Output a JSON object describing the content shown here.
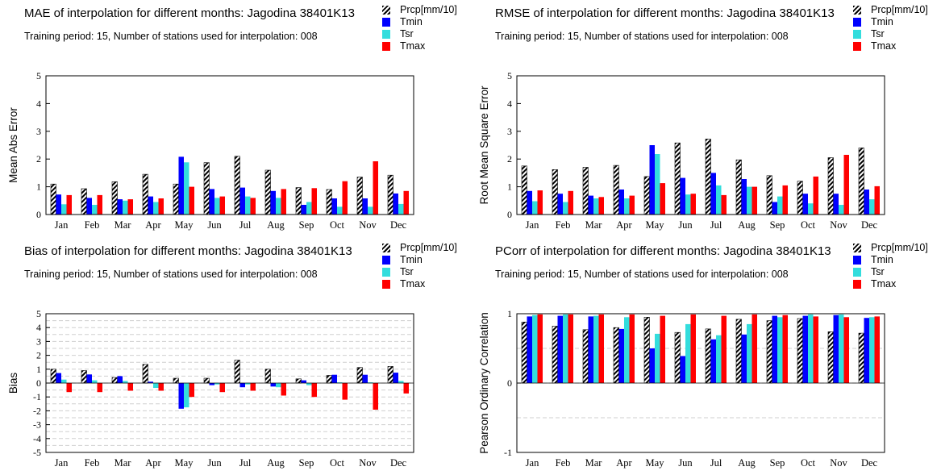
{
  "legend": [
    {
      "name": "Prcp[mm/10]",
      "color": "#000000",
      "pattern": "hatch"
    },
    {
      "name": "Tmin",
      "color": "#0000ff"
    },
    {
      "name": "Tsr",
      "color": "#33dddd"
    },
    {
      "name": "Tmax",
      "color": "#ff0000"
    }
  ],
  "chart_data": [
    {
      "type": "bar",
      "title": "MAE of interpolation for different months: Jagodina  38401K13",
      "subtitle": "Training period: 15, Number of stations used for interpolation: 008",
      "ylabel": "Mean Abs Error",
      "ylim": [
        0,
        5
      ],
      "yticks": [
        0,
        1,
        2,
        3,
        4,
        5
      ],
      "grid": false,
      "categories": [
        "Jan",
        "Feb",
        "Mar",
        "Apr",
        "May",
        "Jun",
        "Jul",
        "Aug",
        "Sep",
        "Oct",
        "Nov",
        "Dec"
      ],
      "series": [
        {
          "name": "Prcp[mm/10]",
          "values": [
            1.1,
            0.93,
            1.18,
            1.45,
            1.1,
            1.87,
            2.1,
            1.6,
            0.97,
            0.9,
            1.35,
            1.42
          ]
        },
        {
          "name": "Tmin",
          "values": [
            0.72,
            0.6,
            0.55,
            0.65,
            2.08,
            0.92,
            0.97,
            0.85,
            0.35,
            0.58,
            0.58,
            0.76
          ]
        },
        {
          "name": "Tsr",
          "values": [
            0.37,
            0.35,
            0.5,
            0.45,
            1.88,
            0.6,
            0.65,
            0.6,
            0.45,
            0.28,
            0.28,
            0.38
          ]
        },
        {
          "name": "Tmax",
          "values": [
            0.7,
            0.7,
            0.55,
            0.58,
            1.0,
            0.65,
            0.6,
            0.92,
            0.95,
            1.2,
            1.92,
            0.85
          ]
        }
      ]
    },
    {
      "type": "bar",
      "title": "RMSE of interpolation for different months: Jagodina  38401K13",
      "subtitle": "Training period: 15, Number of stations used for interpolation: 008",
      "ylabel": "Root Mean Square Error",
      "ylim": [
        0,
        5
      ],
      "yticks": [
        0,
        1,
        2,
        3,
        4,
        5
      ],
      "grid": false,
      "categories": [
        "Jan",
        "Feb",
        "Mar",
        "Apr",
        "May",
        "Jun",
        "Jul",
        "Aug",
        "Sep",
        "Oct",
        "Nov",
        "Dec"
      ],
      "series": [
        {
          "name": "Prcp[mm/10]",
          "values": [
            1.75,
            1.62,
            1.7,
            1.77,
            1.37,
            2.58,
            2.72,
            1.97,
            1.4,
            1.2,
            2.05,
            2.4
          ]
        },
        {
          "name": "Tmin",
          "values": [
            0.85,
            0.75,
            0.68,
            0.9,
            2.5,
            1.32,
            1.5,
            1.28,
            0.45,
            0.75,
            0.75,
            0.9
          ]
        },
        {
          "name": "Tsr",
          "values": [
            0.48,
            0.45,
            0.58,
            0.58,
            2.18,
            0.72,
            1.05,
            1.0,
            0.65,
            0.4,
            0.35,
            0.55
          ]
        },
        {
          "name": "Tmax",
          "values": [
            0.87,
            0.85,
            0.63,
            0.68,
            1.13,
            0.75,
            0.7,
            1.0,
            1.05,
            1.37,
            2.15,
            1.02
          ]
        }
      ]
    },
    {
      "type": "bar",
      "title": "Bias of interpolation for different months: Jagodina  38401K13",
      "subtitle": "Training period: 15, Number of stations used for interpolation: 008",
      "ylabel": "Bias",
      "ylim": [
        -5,
        5
      ],
      "yticks": [
        -5,
        -4,
        -3,
        -2,
        -1,
        0,
        1,
        2,
        3,
        4,
        5
      ],
      "grid": true,
      "categories": [
        "Jan",
        "Feb",
        "Mar",
        "Apr",
        "May",
        "Jun",
        "Jul",
        "Aug",
        "Sep",
        "Oct",
        "Nov",
        "Dec"
      ],
      "series": [
        {
          "name": "Prcp[mm/10]",
          "values": [
            1.0,
            0.9,
            0.4,
            1.35,
            0.35,
            0.35,
            1.65,
            1.0,
            0.3,
            0.55,
            1.12,
            1.2
          ]
        },
        {
          "name": "Tmin",
          "values": [
            0.72,
            0.62,
            0.5,
            0.1,
            -1.85,
            -0.15,
            -0.3,
            -0.25,
            0.2,
            0.6,
            0.6,
            0.75
          ]
        },
        {
          "name": "Tsr",
          "values": [
            0.25,
            0.2,
            0.15,
            -0.35,
            -1.75,
            -0.1,
            -0.1,
            -0.3,
            -0.15,
            0.05,
            0.05,
            0.15
          ]
        },
        {
          "name": "Tmax",
          "values": [
            -0.65,
            -0.65,
            -0.55,
            -0.55,
            -1.0,
            -0.65,
            -0.55,
            -0.9,
            -1.0,
            -1.2,
            -1.92,
            -0.75
          ]
        }
      ]
    },
    {
      "type": "bar",
      "title": "PCorr of interpolation for different months: Jagodina  38401K13",
      "subtitle": "Training period: 15, Number of stations used for interpolation: 008",
      "ylabel": "Pearson Ordinary Correlation",
      "ylim": [
        -1,
        1
      ],
      "yticks": [
        -1,
        0,
        1
      ],
      "grid": true,
      "categories": [
        "Jan",
        "Feb",
        "Mar",
        "Apr",
        "May",
        "Jun",
        "Jul",
        "Aug",
        "Sep",
        "Oct",
        "Nov",
        "Dec"
      ],
      "series": [
        {
          "name": "Prcp[mm/10]",
          "values": [
            0.88,
            0.82,
            0.77,
            0.8,
            0.95,
            0.73,
            0.78,
            0.92,
            0.9,
            0.93,
            0.74,
            0.72
          ]
        },
        {
          "name": "Tmin",
          "values": [
            0.96,
            0.97,
            0.96,
            0.78,
            0.5,
            0.39,
            0.63,
            0.7,
            0.97,
            0.97,
            0.98,
            0.94
          ]
        },
        {
          "name": "Tsr",
          "values": [
            0.98,
            0.99,
            0.97,
            0.95,
            0.71,
            0.85,
            0.69,
            0.85,
            0.95,
            0.99,
            0.99,
            0.95
          ]
        },
        {
          "name": "Tmax",
          "values": [
            0.99,
            0.99,
            0.99,
            0.99,
            0.97,
            0.99,
            0.97,
            0.99,
            0.98,
            0.96,
            0.95,
            0.96
          ]
        }
      ]
    }
  ]
}
